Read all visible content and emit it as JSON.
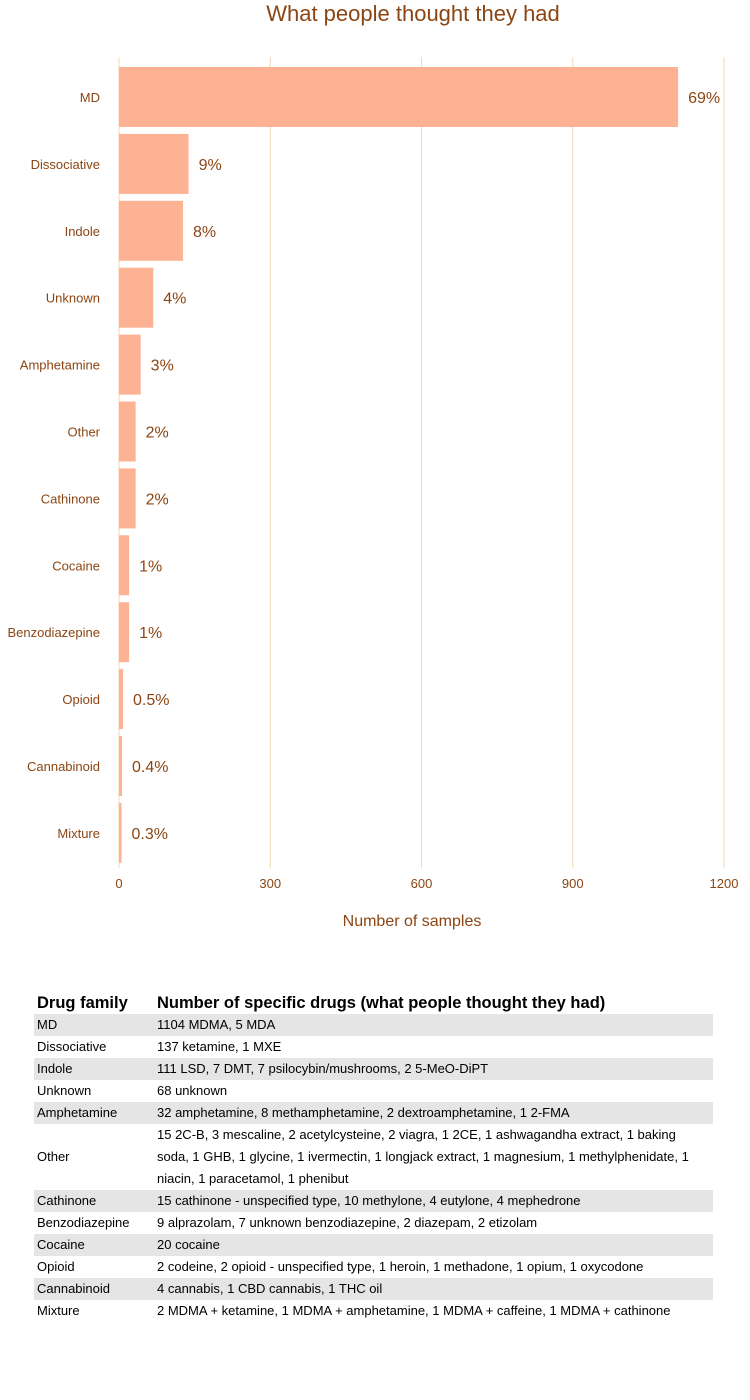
{
  "chart_data": {
    "type": "bar",
    "orientation": "horizontal",
    "title": "What people thought they had",
    "xlabel": "Number of samples",
    "ylabel": "",
    "xlim": [
      0,
      1200
    ],
    "xticks": [
      0,
      300,
      600,
      900,
      1200
    ],
    "grid": "vertical",
    "bar_color": "#fdb294",
    "text_color": "#8b4513",
    "grid_color": "#f3d9b5",
    "categories": [
      "MD",
      "Dissociative",
      "Indole",
      "Unknown",
      "Amphetamine",
      "Other",
      "Cathinone",
      "Cocaine",
      "Benzodiazepine",
      "Opioid",
      "Cannabinoid",
      "Mixture"
    ],
    "values": [
      1109,
      138,
      127,
      68,
      43,
      33,
      33,
      20,
      20,
      8,
      6,
      5
    ],
    "data_labels": [
      "69%",
      "9%",
      "8%",
      "4%",
      "3%",
      "2%",
      "2%",
      "1%",
      "1%",
      "0.5%",
      "0.4%",
      "0.3%"
    ]
  },
  "table": {
    "headers": [
      "Drug family",
      "Number of specific drugs (what people thought they had)"
    ],
    "rows": [
      [
        "MD",
        "1104 MDMA, 5 MDA"
      ],
      [
        "Dissociative",
        "137 ketamine, 1 MXE"
      ],
      [
        "Indole",
        "111 LSD, 7 DMT, 7 psilocybin/mushrooms, 2 5-MeO-DiPT"
      ],
      [
        "Unknown",
        "68 unknown"
      ],
      [
        "Amphetamine",
        "32 amphetamine, 8 methamphetamine, 2 dextroamphetamine, 1 2-FMA"
      ],
      [
        "Other",
        "15 2C-B, 3 mescaline, 2 acetylcysteine, 2 viagra, 1 2CE, 1 ashwagandha extract, 1 baking soda, 1 GHB, 1 glycine, 1 ivermectin, 1 longjack extract, 1 magnesium, 1 methylphenidate, 1 niacin, 1 paracetamol, 1 phenibut"
      ],
      [
        "Cathinone",
        "15 cathinone - unspecified type, 10 methylone, 4 eutylone, 4 mephedrone"
      ],
      [
        "Benzodiazepine",
        "9 alprazolam, 7 unknown benzodiazepine, 2 diazepam, 2 etizolam"
      ],
      [
        "Cocaine",
        "20 cocaine"
      ],
      [
        "Opioid",
        "2 codeine, 2 opioid - unspecified type, 1 heroin, 1 methadone, 1 opium, 1 oxycodone"
      ],
      [
        "Cannabinoid",
        "4 cannabis, 1 CBD cannabis, 1 THC oil"
      ],
      [
        "Mixture",
        "2 MDMA + ketamine, 1 MDMA + amphetamine, 1 MDMA + caffeine, 1 MDMA + cathinone"
      ]
    ]
  }
}
